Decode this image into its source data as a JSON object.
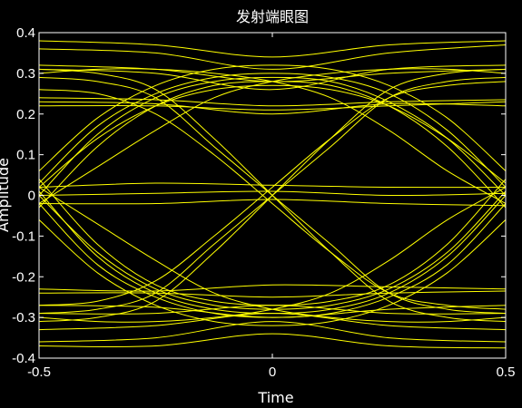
{
  "chart_data": {
    "type": "line",
    "title": "发射端眼图",
    "xlabel": "Time",
    "ylabel": "Amplitude",
    "xlim": [
      -0.5,
      0.5
    ],
    "ylim": [
      -0.4,
      0.4
    ],
    "xticks": [
      -0.5,
      0,
      0.5
    ],
    "xtick_labels": [
      "-0.5",
      "0",
      "0.5"
    ],
    "yticks": [
      -0.4,
      -0.3,
      -0.2,
      -0.1,
      0,
      0.1,
      0.2,
      0.3,
      0.4
    ],
    "ytick_labels": [
      "-0.4",
      "-0.3",
      "-0.2",
      "-0.1",
      "0",
      "0.1",
      "0.2",
      "0.3",
      "0.4"
    ],
    "grid": false,
    "background": "#000000",
    "line_color": "#ffff00",
    "series": [
      {
        "x": [
          -0.5,
          -0.25,
          0,
          0.25,
          0.5
        ],
        "y": [
          0.38,
          0.37,
          0.34,
          0.37,
          0.38
        ]
      },
      {
        "x": [
          -0.5,
          -0.25,
          0,
          0.25,
          0.5
        ],
        "y": [
          0.36,
          0.35,
          0.31,
          0.35,
          0.37
        ]
      },
      {
        "x": [
          -0.5,
          -0.25,
          0,
          0.25,
          0.5
        ],
        "y": [
          0.32,
          0.31,
          0.28,
          0.3,
          0.31
        ]
      },
      {
        "x": [
          -0.5,
          -0.25,
          0,
          0.25,
          0.5
        ],
        "y": [
          0.31,
          0.3,
          0.26,
          0.31,
          0.32
        ]
      },
      {
        "x": [
          -0.5,
          -0.25,
          0,
          0.25,
          0.5
        ],
        "y": [
          0.24,
          0.235,
          0.22,
          0.23,
          0.235
        ]
      },
      {
        "x": [
          -0.5,
          -0.25,
          0,
          0.25,
          0.5
        ],
        "y": [
          0.23,
          0.225,
          0.2,
          0.225,
          0.22
        ]
      },
      {
        "x": [
          -0.5,
          -0.25,
          0,
          0.25,
          0.5
        ],
        "y": [
          0.22,
          0.22,
          0.21,
          0.22,
          0.23
        ]
      },
      {
        "x": [
          -0.5,
          -0.25,
          0,
          0.25,
          0.5
        ],
        "y": [
          -0.23,
          -0.235,
          -0.22,
          -0.225,
          -0.23
        ]
      },
      {
        "x": [
          -0.5,
          -0.25,
          0,
          0.25,
          0.5
        ],
        "y": [
          -0.24,
          -0.24,
          -0.25,
          -0.24,
          -0.235
        ]
      },
      {
        "x": [
          -0.5,
          -0.25,
          0,
          0.25,
          0.5
        ],
        "y": [
          -0.27,
          -0.275,
          -0.3,
          -0.28,
          -0.27
        ]
      },
      {
        "x": [
          -0.5,
          -0.25,
          0,
          0.25,
          0.5
        ],
        "y": [
          -0.29,
          -0.29,
          -0.27,
          -0.29,
          -0.29
        ]
      },
      {
        "x": [
          -0.5,
          -0.25,
          0,
          0.25,
          0.5
        ],
        "y": [
          -0.33,
          -0.32,
          -0.29,
          -0.32,
          -0.33
        ]
      },
      {
        "x": [
          -0.5,
          -0.25,
          0,
          0.25,
          0.5
        ],
        "y": [
          -0.36,
          -0.35,
          -0.31,
          -0.35,
          -0.36
        ]
      },
      {
        "x": [
          -0.5,
          -0.25,
          0,
          0.25,
          0.5
        ],
        "y": [
          -0.37,
          -0.37,
          -0.34,
          -0.37,
          -0.375
        ]
      },
      {
        "x": [
          -0.5,
          -0.25,
          0,
          0.25,
          0.5
        ],
        "y": [
          0.02,
          0.03,
          0.025,
          0.02,
          0.02
        ]
      },
      {
        "x": [
          -0.5,
          -0.25,
          0,
          0.25,
          0.5
        ],
        "y": [
          0.0,
          0.005,
          0.01,
          0.0,
          0.005
        ]
      },
      {
        "x": [
          -0.5,
          -0.25,
          0,
          0.25,
          0.5
        ],
        "y": [
          -0.02,
          -0.02,
          -0.01,
          -0.02,
          -0.025
        ]
      },
      {
        "x": [
          -0.5,
          -0.375,
          -0.25,
          -0.125,
          0,
          0.125,
          0.25,
          0.375,
          0.5
        ],
        "y": [
          0.03,
          0.17,
          0.25,
          0.29,
          0.3,
          0.29,
          0.25,
          0.16,
          0.02
        ]
      },
      {
        "x": [
          -0.5,
          -0.375,
          -0.25,
          -0.125,
          0,
          0.125,
          0.25,
          0.375,
          0.5
        ],
        "y": [
          0.0,
          0.15,
          0.24,
          0.28,
          0.29,
          0.28,
          0.23,
          0.14,
          0.0
        ]
      },
      {
        "x": [
          -0.5,
          -0.375,
          -0.25,
          -0.125,
          0,
          0.125,
          0.25,
          0.375,
          0.5
        ],
        "y": [
          -0.03,
          0.12,
          0.22,
          0.27,
          0.28,
          0.27,
          0.22,
          0.12,
          -0.03
        ]
      },
      {
        "x": [
          -0.5,
          -0.375,
          -0.25,
          -0.125,
          0,
          0.125,
          0.25,
          0.375,
          0.5
        ],
        "y": [
          0.06,
          0.19,
          0.27,
          0.31,
          0.32,
          0.31,
          0.27,
          0.19,
          0.06
        ]
      },
      {
        "x": [
          -0.5,
          -0.375,
          -0.25,
          -0.125,
          0,
          0.125,
          0.25,
          0.375,
          0.5
        ],
        "y": [
          0.02,
          0.14,
          0.22,
          0.26,
          0.27,
          0.26,
          0.22,
          0.14,
          0.03
        ]
      },
      {
        "x": [
          -0.5,
          -0.375,
          -0.25,
          -0.125,
          0,
          0.125,
          0.25,
          0.375,
          0.5
        ],
        "y": [
          0.01,
          -0.15,
          -0.24,
          -0.28,
          -0.29,
          -0.28,
          -0.24,
          -0.15,
          0.0
        ]
      },
      {
        "x": [
          -0.5,
          -0.375,
          -0.25,
          -0.125,
          0,
          0.125,
          0.25,
          0.375,
          0.5
        ],
        "y": [
          -0.02,
          -0.17,
          -0.25,
          -0.29,
          -0.3,
          -0.29,
          -0.25,
          -0.17,
          -0.02
        ]
      },
      {
        "x": [
          -0.5,
          -0.375,
          -0.25,
          -0.125,
          0,
          0.125,
          0.25,
          0.375,
          0.5
        ],
        "y": [
          0.04,
          -0.12,
          -0.22,
          -0.26,
          -0.27,
          -0.26,
          -0.22,
          -0.12,
          0.04
        ]
      },
      {
        "x": [
          -0.5,
          -0.375,
          -0.25,
          -0.125,
          0,
          0.125,
          0.25,
          0.375,
          0.5
        ],
        "y": [
          -0.06,
          -0.19,
          -0.27,
          -0.31,
          -0.32,
          -0.31,
          -0.27,
          -0.19,
          -0.06
        ]
      },
      {
        "x": [
          -0.5,
          -0.375,
          -0.25,
          -0.125,
          0,
          0.125,
          0.25,
          0.375,
          0.5
        ],
        "y": [
          0.0,
          -0.14,
          -0.23,
          -0.27,
          -0.28,
          -0.27,
          -0.23,
          -0.14,
          0.01
        ]
      },
      {
        "x": [
          -0.5,
          -0.375,
          -0.25,
          -0.125,
          0,
          0.125,
          0.25,
          0.375,
          0.5
        ],
        "y": [
          0.31,
          0.3,
          0.26,
          0.14,
          0.0,
          -0.14,
          -0.26,
          -0.3,
          -0.31
        ]
      },
      {
        "x": [
          -0.5,
          -0.375,
          -0.25,
          -0.125,
          0,
          0.125,
          0.25,
          0.375,
          0.5
        ],
        "y": [
          0.29,
          0.28,
          0.24,
          0.12,
          0.0,
          -0.12,
          -0.24,
          -0.28,
          -0.29
        ]
      },
      {
        "x": [
          -0.5,
          -0.375,
          -0.25,
          -0.125,
          0,
          0.125,
          0.25,
          0.375,
          0.5
        ],
        "y": [
          0.26,
          0.25,
          0.2,
          0.1,
          -0.02,
          -0.14,
          -0.24,
          -0.27,
          -0.28
        ]
      },
      {
        "x": [
          -0.5,
          -0.375,
          -0.25,
          -0.125,
          0,
          0.125,
          0.25,
          0.375,
          0.5
        ],
        "y": [
          -0.31,
          -0.3,
          -0.26,
          -0.14,
          0.0,
          0.14,
          0.26,
          0.3,
          0.31
        ]
      },
      {
        "x": [
          -0.5,
          -0.375,
          -0.25,
          -0.125,
          0,
          0.125,
          0.25,
          0.375,
          0.5
        ],
        "y": [
          -0.29,
          -0.28,
          -0.24,
          -0.12,
          0.0,
          0.12,
          0.24,
          0.28,
          0.29
        ]
      },
      {
        "x": [
          -0.5,
          -0.375,
          -0.25,
          -0.125,
          0,
          0.125,
          0.25,
          0.375,
          0.5
        ],
        "y": [
          -0.27,
          -0.26,
          -0.21,
          -0.1,
          0.02,
          0.14,
          0.24,
          0.27,
          0.28
        ]
      },
      {
        "x": [
          -0.5,
          -0.375,
          -0.25,
          -0.125,
          0,
          0.125,
          0.25,
          0.375,
          0.5
        ],
        "y": [
          0.3,
          0.31,
          0.31,
          0.3,
          0.28,
          0.24,
          0.16,
          0.06,
          -0.02
        ]
      },
      {
        "x": [
          -0.5,
          -0.375,
          -0.25,
          -0.125,
          0,
          0.125,
          0.25,
          0.375,
          0.5
        ],
        "y": [
          -0.02,
          0.07,
          0.16,
          0.24,
          0.28,
          0.3,
          0.31,
          0.31,
          0.3
        ]
      },
      {
        "x": [
          -0.5,
          -0.375,
          -0.25,
          -0.125,
          0,
          0.125,
          0.25,
          0.375,
          0.5
        ],
        "y": [
          -0.3,
          -0.31,
          -0.31,
          -0.3,
          -0.28,
          -0.24,
          -0.16,
          -0.06,
          0.02
        ]
      },
      {
        "x": [
          -0.5,
          -0.375,
          -0.25,
          -0.125,
          0,
          0.125,
          0.25,
          0.375,
          0.5
        ],
        "y": [
          0.02,
          -0.07,
          -0.16,
          -0.24,
          -0.28,
          -0.3,
          -0.31,
          -0.31,
          -0.3
        ]
      }
    ]
  }
}
